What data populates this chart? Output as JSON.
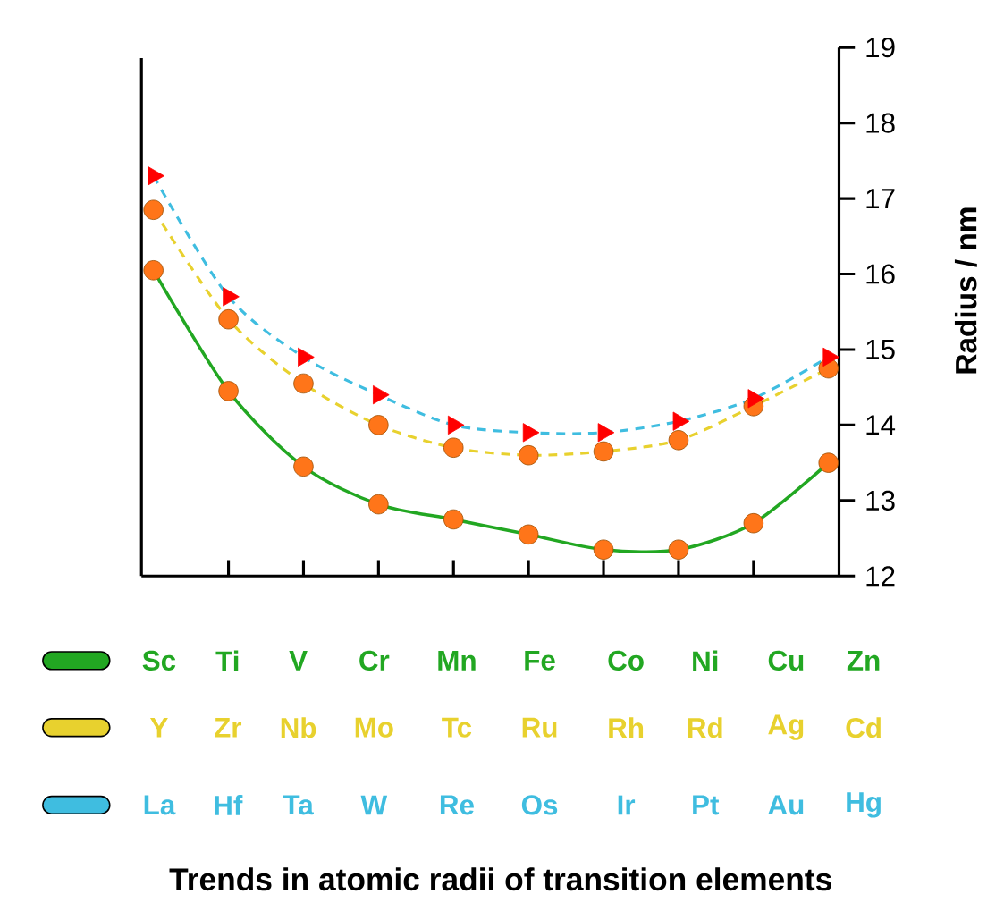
{
  "chart_data": {
    "type": "line",
    "title": "Trends in atomic radii of transition elements",
    "ylabel": "Radius / nm",
    "categories": [
      null,
      null,
      null,
      null,
      null,
      null,
      null,
      null,
      null,
      null
    ],
    "series": [
      {
        "color": "#22a722",
        "marker": "circle",
        "line_style": "solid",
        "values": [
          16.05,
          14.45,
          13.45,
          12.95,
          12.75,
          12.55,
          12.35,
          12.35,
          12.7,
          13.5
        ]
      },
      {
        "color": "#e8d12e",
        "marker": "circle",
        "line_style": "dashed",
        "values": [
          16.85,
          15.4,
          14.55,
          14.0,
          13.7,
          13.6,
          13.65,
          13.8,
          14.25,
          14.75
        ]
      },
      {
        "color": "#3fbde0",
        "marker": "triangle",
        "line_style": "dashed",
        "values": [
          17.3,
          15.7,
          14.9,
          14.4,
          14.0,
          13.9,
          13.9,
          14.05,
          14.35,
          14.9
        ]
      }
    ],
    "ylim": [
      12,
      19
    ],
    "yticks": [
      12,
      13,
      14,
      15,
      16,
      17,
      18,
      19
    ],
    "annotations": [
      "Sc",
      "Ti",
      "V",
      "Cr",
      "Mn",
      "Fe",
      "Co",
      "Ni",
      "Cu",
      "Zn",
      "Y",
      "Zr",
      "Nb",
      "Mo",
      "Tc",
      "Ru",
      "Rh",
      "Rd",
      "Ag",
      "Cd",
      "La",
      "Hf",
      "Ta",
      "W",
      "Re",
      "Os",
      "Ir",
      "Pt",
      "Au",
      "Hg"
    ]
  }
}
